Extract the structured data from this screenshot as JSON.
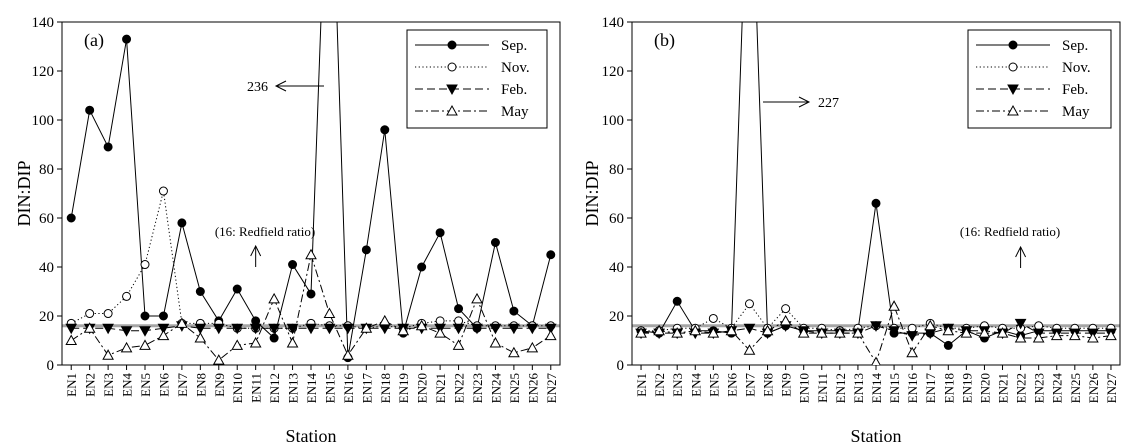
{
  "colors": {
    "ink": "#000000",
    "background": "#ffffff",
    "redfield_line": "#808080"
  },
  "chart_data": [
    {
      "type": "line",
      "panel_label": "(a)",
      "xlabel": "Station",
      "ylabel": "DIN:DIP",
      "ylim": [
        0,
        140
      ],
      "yticks": [
        0,
        20,
        40,
        60,
        80,
        100,
        120,
        140
      ],
      "grid": false,
      "legend_position": "top-right",
      "categories": [
        "EN1",
        "EN2",
        "EN3",
        "EN4",
        "EN5",
        "EN6",
        "EN7",
        "EN8",
        "EN9",
        "EN10",
        "EN11",
        "EN12",
        "EN13",
        "EN14",
        "EN15",
        "EN16",
        "EN17",
        "EN18",
        "EN19",
        "EN20",
        "EN21",
        "EN22",
        "EN23",
        "EN24",
        "EN25",
        "EN26",
        "EN27"
      ],
      "series": [
        {
          "name": "Sep.",
          "marker": "filled-circle",
          "line": "solid",
          "values": [
            60,
            104,
            89,
            133,
            20,
            20,
            58,
            30,
            18,
            31,
            18,
            11,
            41,
            29,
            236,
            3,
            47,
            96,
            13,
            40,
            54,
            23,
            15,
            50,
            22,
            16,
            45
          ]
        },
        {
          "name": "Nov.",
          "marker": "open-circle",
          "line": "dotted",
          "values": [
            17,
            21,
            21,
            28,
            41,
            71,
            17,
            17,
            17,
            15,
            15,
            15,
            15,
            17,
            16,
            16,
            15,
            16,
            15,
            17,
            18,
            18,
            16,
            16,
            16,
            16,
            16
          ]
        },
        {
          "name": "Feb.",
          "marker": "filled-triangle-down",
          "line": "dashed",
          "values": [
            15,
            15,
            15,
            14,
            14,
            15,
            16,
            15,
            15,
            15,
            15,
            15,
            15,
            15,
            15,
            15,
            15,
            15,
            15,
            15,
            15,
            15,
            15,
            15,
            15,
            15,
            15
          ]
        },
        {
          "name": "May",
          "marker": "open-triangle-up",
          "line": "dash-dot",
          "values": [
            10,
            15,
            4,
            7,
            8,
            12,
            17,
            11,
            2,
            8,
            9,
            27,
            9,
            45,
            21,
            4,
            15,
            18,
            14,
            16,
            13,
            8,
            27,
            9,
            5,
            7,
            12
          ]
        }
      ],
      "redfield_ratio": 16,
      "annotations": [
        {
          "text": "236",
          "target_category": "EN15",
          "target_value": 236
        },
        {
          "text": "(16: Redfield ratio)",
          "target_category": "EN11",
          "target_value": 16
        }
      ]
    },
    {
      "type": "line",
      "panel_label": "(b)",
      "xlabel": "Station",
      "ylabel": "DIN:DIP",
      "ylim": [
        0,
        140
      ],
      "yticks": [
        0,
        20,
        40,
        60,
        80,
        100,
        120,
        140
      ],
      "grid": false,
      "legend_position": "top-right",
      "categories": [
        "EN1",
        "EN2",
        "EN3",
        "EN4",
        "EN5",
        "EN6",
        "EN7",
        "EN8",
        "EN9",
        "EN10",
        "EN11",
        "EN12",
        "EN13",
        "EN14",
        "EN15",
        "EN16",
        "EN17",
        "EN18",
        "EN19",
        "EN20",
        "EN21",
        "EN22",
        "EN23",
        "EN24",
        "EN25",
        "EN26",
        "EN27"
      ],
      "series": [
        {
          "name": "Sep.",
          "marker": "filled-circle",
          "line": "solid",
          "values": [
            14,
            13,
            26,
            14,
            14,
            13,
            227,
            13,
            16,
            14,
            14,
            14,
            14,
            66,
            13,
            13,
            13,
            8,
            14,
            11,
            14,
            12,
            14,
            14,
            14,
            14,
            14
          ]
        },
        {
          "name": "Nov.",
          "marker": "open-circle",
          "line": "dotted",
          "values": [
            14,
            14,
            15,
            15,
            19,
            15,
            25,
            15,
            23,
            15,
            15,
            14,
            15,
            16,
            15,
            15,
            17,
            15,
            15,
            16,
            15,
            15,
            16,
            15,
            15,
            15,
            15
          ]
        },
        {
          "name": "Feb.",
          "marker": "filled-triangle-down",
          "line": "dashed",
          "values": [
            13,
            13,
            13,
            13,
            13,
            14,
            15,
            13,
            16,
            14,
            13,
            13,
            13,
            16,
            14,
            12,
            13,
            15,
            14,
            14,
            13,
            17,
            13,
            13,
            13,
            13,
            13
          ]
        },
        {
          "name": "May",
          "marker": "open-triangle-up",
          "line": "dash-dot",
          "values": [
            13,
            14,
            13,
            14,
            13,
            14,
            6,
            14,
            18,
            13,
            13,
            13,
            13,
            1,
            24,
            5,
            16,
            14,
            13,
            13,
            13,
            11,
            11,
            12,
            12,
            11,
            12
          ]
        }
      ],
      "redfield_ratio": 16,
      "annotations": [
        {
          "text": "227",
          "target_category": "EN7",
          "target_value": 227
        },
        {
          "text": "(16: Redfield ratio)",
          "target_category": "EN22",
          "target_value": 16
        }
      ]
    }
  ]
}
